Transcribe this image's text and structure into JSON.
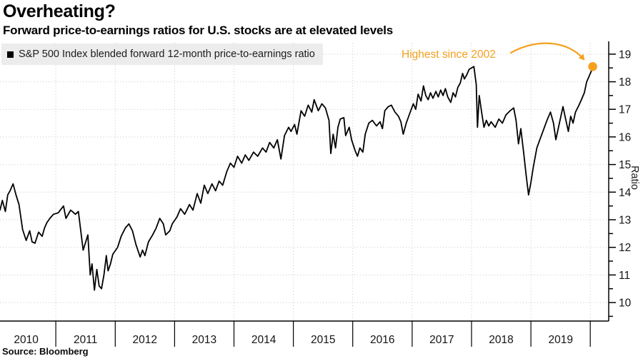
{
  "header": {
    "title": "Overheating?",
    "subtitle": "Forward price-to-earnings ratios for U.S. stocks are at elevated levels"
  },
  "legend": {
    "label": "S&P 500 Index blended forward 12-month price-to-earnings ratio"
  },
  "annotation": {
    "text": "Highest since 2002"
  },
  "source": {
    "text": "Source: Bloomberg"
  },
  "colors": {
    "accent_orange": "#F5A01F",
    "line_black": "#000000",
    "grid_gray": "#C9C9C9",
    "legend_bg": "#ECECEC"
  },
  "chart_data": {
    "type": "line",
    "title": "Overheating?",
    "subtitle": "Forward price-to-earnings ratios for U.S. stocks are at elevated levels",
    "grid": true,
    "legend_position": "top-left",
    "x_axis": {
      "year_labels": [
        "2010",
        "2011",
        "2012",
        "2013",
        "2014",
        "2015",
        "2016",
        "2017",
        "2018",
        "2019"
      ],
      "start_year": 2010,
      "boundaries": [
        2011,
        2012,
        2013,
        2014,
        2015,
        2016,
        2017,
        2018,
        2019,
        2020
      ],
      "range": [
        2010.06,
        2020.31
      ]
    },
    "y_axis": {
      "label": "Ratio",
      "ticks": [
        10,
        11,
        12,
        13,
        14,
        15,
        16,
        17,
        18,
        19
      ],
      "minor_step": 0.5,
      "range": [
        9.33,
        19.41
      ],
      "side": "right"
    },
    "series": [
      {
        "name": "S&P 500 Index blended forward 12-month price-to-earnings ratio",
        "color": "#000000",
        "points": [
          [
            2010.06,
            13.35
          ],
          [
            2010.1,
            13.7
          ],
          [
            2010.15,
            13.3
          ],
          [
            2010.19,
            13.9
          ],
          [
            2010.23,
            14.05
          ],
          [
            2010.28,
            14.3
          ],
          [
            2010.33,
            13.9
          ],
          [
            2010.38,
            13.55
          ],
          [
            2010.44,
            12.65
          ],
          [
            2010.5,
            12.25
          ],
          [
            2010.56,
            12.6
          ],
          [
            2010.6,
            12.2
          ],
          [
            2010.65,
            12.15
          ],
          [
            2010.71,
            12.55
          ],
          [
            2010.77,
            12.4
          ],
          [
            2010.81,
            12.7
          ],
          [
            2010.85,
            12.9
          ],
          [
            2010.9,
            13.05
          ],
          [
            2010.96,
            13.2
          ],
          [
            2011.04,
            13.25
          ],
          [
            2011.13,
            13.5
          ],
          [
            2011.17,
            13.05
          ],
          [
            2011.25,
            13.35
          ],
          [
            2011.33,
            13.2
          ],
          [
            2011.38,
            13.3
          ],
          [
            2011.46,
            11.9
          ],
          [
            2011.54,
            12.45
          ],
          [
            2011.58,
            11.0
          ],
          [
            2011.61,
            11.4
          ],
          [
            2011.65,
            10.45
          ],
          [
            2011.69,
            11.2
          ],
          [
            2011.73,
            10.6
          ],
          [
            2011.77,
            10.5
          ],
          [
            2011.81,
            11.0
          ],
          [
            2011.85,
            11.7
          ],
          [
            2011.88,
            11.15
          ],
          [
            2011.92,
            11.4
          ],
          [
            2011.96,
            11.75
          ],
          [
            2012.04,
            12.0
          ],
          [
            2012.1,
            12.4
          ],
          [
            2012.17,
            12.7
          ],
          [
            2012.23,
            12.85
          ],
          [
            2012.29,
            12.6
          ],
          [
            2012.35,
            12.1
          ],
          [
            2012.42,
            11.65
          ],
          [
            2012.46,
            11.9
          ],
          [
            2012.5,
            11.7
          ],
          [
            2012.56,
            12.2
          ],
          [
            2012.63,
            12.45
          ],
          [
            2012.69,
            12.7
          ],
          [
            2012.75,
            13.05
          ],
          [
            2012.81,
            12.85
          ],
          [
            2012.85,
            12.45
          ],
          [
            2012.92,
            12.6
          ],
          [
            2012.96,
            12.85
          ],
          [
            2013.04,
            13.1
          ],
          [
            2013.1,
            13.4
          ],
          [
            2013.17,
            13.2
          ],
          [
            2013.25,
            13.55
          ],
          [
            2013.31,
            13.35
          ],
          [
            2013.38,
            13.95
          ],
          [
            2013.44,
            13.6
          ],
          [
            2013.5,
            14.25
          ],
          [
            2013.56,
            13.95
          ],
          [
            2013.63,
            14.3
          ],
          [
            2013.69,
            14.05
          ],
          [
            2013.75,
            14.4
          ],
          [
            2013.81,
            14.25
          ],
          [
            2013.88,
            14.75
          ],
          [
            2013.94,
            15.05
          ],
          [
            2014.0,
            14.9
          ],
          [
            2014.06,
            15.3
          ],
          [
            2014.13,
            15.05
          ],
          [
            2014.19,
            15.35
          ],
          [
            2014.25,
            15.15
          ],
          [
            2014.33,
            15.45
          ],
          [
            2014.4,
            15.3
          ],
          [
            2014.48,
            15.6
          ],
          [
            2014.54,
            15.45
          ],
          [
            2014.6,
            15.8
          ],
          [
            2014.67,
            15.6
          ],
          [
            2014.73,
            15.9
          ],
          [
            2014.79,
            15.2
          ],
          [
            2014.85,
            16.05
          ],
          [
            2014.92,
            16.35
          ],
          [
            2014.96,
            16.2
          ],
          [
            2015.02,
            16.45
          ],
          [
            2015.06,
            16.1
          ],
          [
            2015.13,
            16.95
          ],
          [
            2015.19,
            16.75
          ],
          [
            2015.25,
            17.15
          ],
          [
            2015.31,
            16.9
          ],
          [
            2015.35,
            17.35
          ],
          [
            2015.42,
            16.95
          ],
          [
            2015.48,
            17.2
          ],
          [
            2015.54,
            17.05
          ],
          [
            2015.6,
            16.6
          ],
          [
            2015.63,
            15.4
          ],
          [
            2015.67,
            16.1
          ],
          [
            2015.71,
            15.6
          ],
          [
            2015.75,
            16.35
          ],
          [
            2015.79,
            16.65
          ],
          [
            2015.85,
            16.7
          ],
          [
            2015.88,
            16.05
          ],
          [
            2015.94,
            16.35
          ],
          [
            2015.98,
            15.9
          ],
          [
            2016.04,
            15.5
          ],
          [
            2016.08,
            15.3
          ],
          [
            2016.12,
            15.6
          ],
          [
            2016.17,
            15.45
          ],
          [
            2016.21,
            16.1
          ],
          [
            2016.27,
            16.5
          ],
          [
            2016.33,
            16.6
          ],
          [
            2016.4,
            16.4
          ],
          [
            2016.46,
            16.55
          ],
          [
            2016.5,
            16.3
          ],
          [
            2016.54,
            16.95
          ],
          [
            2016.6,
            17.1
          ],
          [
            2016.65,
            17.15
          ],
          [
            2016.71,
            16.9
          ],
          [
            2016.77,
            16.75
          ],
          [
            2016.81,
            16.55
          ],
          [
            2016.85,
            16.1
          ],
          [
            2016.9,
            16.5
          ],
          [
            2016.96,
            16.85
          ],
          [
            2017.02,
            17.2
          ],
          [
            2017.06,
            17.0
          ],
          [
            2017.1,
            17.55
          ],
          [
            2017.15,
            17.3
          ],
          [
            2017.19,
            17.85
          ],
          [
            2017.23,
            17.5
          ],
          [
            2017.27,
            17.35
          ],
          [
            2017.31,
            17.6
          ],
          [
            2017.35,
            17.4
          ],
          [
            2017.4,
            17.65
          ],
          [
            2017.44,
            17.45
          ],
          [
            2017.48,
            17.7
          ],
          [
            2017.52,
            17.5
          ],
          [
            2017.56,
            17.75
          ],
          [
            2017.6,
            17.45
          ],
          [
            2017.65,
            17.25
          ],
          [
            2017.69,
            17.6
          ],
          [
            2017.73,
            17.45
          ],
          [
            2017.77,
            17.8
          ],
          [
            2017.81,
            17.95
          ],
          [
            2017.85,
            18.3
          ],
          [
            2017.88,
            18.1
          ],
          [
            2017.92,
            18.25
          ],
          [
            2017.96,
            18.45
          ],
          [
            2018.0,
            18.5
          ],
          [
            2018.04,
            18.55
          ],
          [
            2018.08,
            17.9
          ],
          [
            2018.1,
            16.35
          ],
          [
            2018.13,
            17.5
          ],
          [
            2018.17,
            16.9
          ],
          [
            2018.21,
            16.35
          ],
          [
            2018.25,
            16.6
          ],
          [
            2018.29,
            16.4
          ],
          [
            2018.33,
            16.55
          ],
          [
            2018.4,
            16.35
          ],
          [
            2018.46,
            16.65
          ],
          [
            2018.52,
            16.5
          ],
          [
            2018.58,
            16.8
          ],
          [
            2018.65,
            16.95
          ],
          [
            2018.71,
            17.05
          ],
          [
            2018.75,
            16.6
          ],
          [
            2018.79,
            15.75
          ],
          [
            2018.83,
            16.3
          ],
          [
            2018.88,
            15.4
          ],
          [
            2018.92,
            14.6
          ],
          [
            2018.96,
            13.9
          ],
          [
            2019.0,
            14.35
          ],
          [
            2019.04,
            14.9
          ],
          [
            2019.1,
            15.6
          ],
          [
            2019.15,
            15.9
          ],
          [
            2019.21,
            16.25
          ],
          [
            2019.27,
            16.6
          ],
          [
            2019.33,
            16.9
          ],
          [
            2019.38,
            16.5
          ],
          [
            2019.42,
            15.9
          ],
          [
            2019.48,
            16.5
          ],
          [
            2019.54,
            17.1
          ],
          [
            2019.58,
            16.7
          ],
          [
            2019.63,
            16.2
          ],
          [
            2019.67,
            16.75
          ],
          [
            2019.71,
            16.5
          ],
          [
            2019.75,
            16.9
          ],
          [
            2019.81,
            17.15
          ],
          [
            2019.85,
            17.35
          ],
          [
            2019.9,
            17.6
          ],
          [
            2019.94,
            18.0
          ],
          [
            2019.98,
            18.2
          ],
          [
            2020.02,
            18.4
          ],
          [
            2020.04,
            18.55
          ]
        ]
      }
    ],
    "endpoint_marker": {
      "x": 2020.04,
      "y": 18.55,
      "color": "#F5A01F"
    },
    "annotation": {
      "text": "Highest since 2002",
      "color": "#F5A01F",
      "target": "endpoint_marker"
    }
  }
}
